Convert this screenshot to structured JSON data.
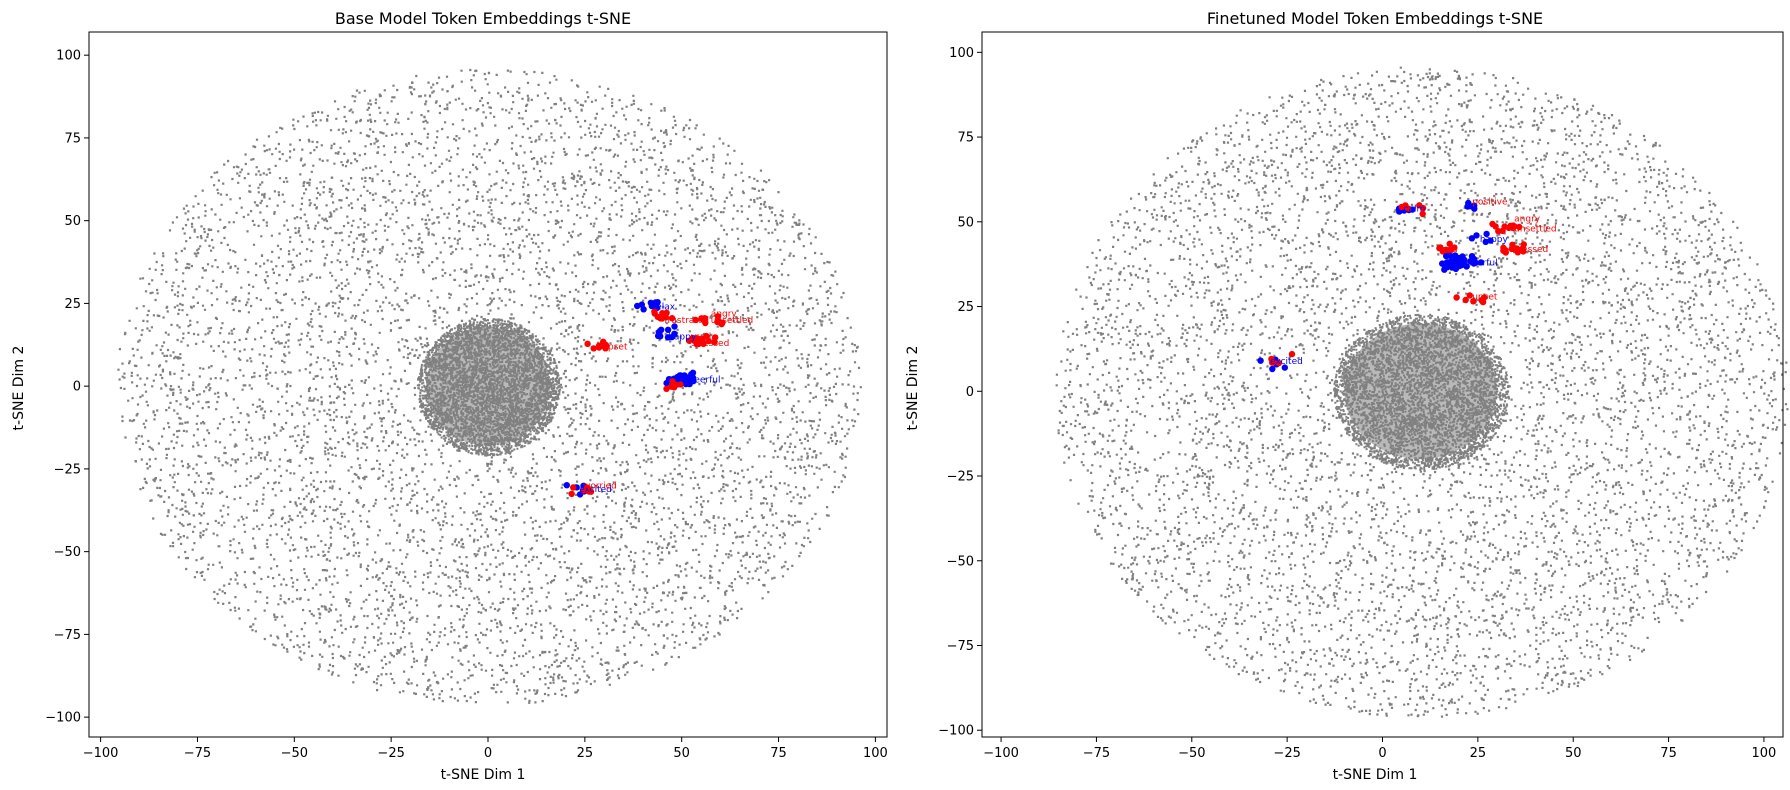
{
  "chart_data": [
    {
      "type": "scatter",
      "title": "Base Model Token Embeddings t-SNE",
      "xlabel": "t-SNE Dim 1",
      "ylabel": "t-SNE Dim 2",
      "xlim": [
        -103,
        103
      ],
      "ylim": [
        -106,
        107
      ],
      "xticks": [
        -100,
        -75,
        -50,
        -25,
        0,
        25,
        50,
        75,
        100
      ],
      "yticks": [
        -100,
        -75,
        -50,
        -25,
        0,
        25,
        50,
        75,
        100
      ],
      "grid": false,
      "background_cloud": {
        "color": "#808080",
        "center": [
          0,
          0
        ],
        "radius": 96,
        "dense_core_center": [
          0,
          0
        ],
        "dense_core_radius_x": 16,
        "dense_core_radius_y": 18
      },
      "highlight_clusters": [
        {
          "color": "#0000ff",
          "x": 42,
          "y": 24,
          "n": 8
        },
        {
          "color": "#ff0000",
          "x": 45,
          "y": 21,
          "n": 10
        },
        {
          "color": "#ff0000",
          "x": 57,
          "y": 20,
          "n": 12
        },
        {
          "color": "#0000ff",
          "x": 47,
          "y": 16,
          "n": 10
        },
        {
          "color": "#ff0000",
          "x": 55,
          "y": 14,
          "n": 14
        },
        {
          "color": "#ff0000",
          "x": 30,
          "y": 12,
          "n": 10
        },
        {
          "color": "#0000ff",
          "x": 50,
          "y": 2,
          "n": 40
        },
        {
          "color": "#ff0000",
          "x": 49,
          "y": 0,
          "n": 6
        },
        {
          "color": "#0000ff",
          "x": 24,
          "y": -31,
          "n": 6
        },
        {
          "color": "#ff0000",
          "x": 25,
          "y": -31,
          "n": 6
        }
      ],
      "annotations": [
        {
          "text": "relax",
          "x": 42,
          "y": 24,
          "color": "#0000ff"
        },
        {
          "text": "frustrated",
          "x": 45,
          "y": 20,
          "color": "#ff0000"
        },
        {
          "text": "angry",
          "x": 57,
          "y": 22,
          "color": "#ff0000"
        },
        {
          "text": "unsettled",
          "x": 57,
          "y": 20,
          "color": "#ff0000"
        },
        {
          "text": "happy",
          "x": 46,
          "y": 15,
          "color": "#0000ff"
        },
        {
          "text": "sad",
          "x": 53,
          "y": 15,
          "color": "#ff0000"
        },
        {
          "text": "stressed",
          "x": 52,
          "y": 13,
          "color": "#ff0000"
        },
        {
          "text": "cheerful",
          "x": 50,
          "y": 2,
          "color": "#0000ff"
        },
        {
          "text": "upset",
          "x": 29,
          "y": 12,
          "color": "#ff0000"
        },
        {
          "text": "excited",
          "x": 23,
          "y": -31,
          "color": "#0000ff"
        },
        {
          "text": "worried",
          "x": 24,
          "y": -30,
          "color": "#ff0000"
        }
      ]
    },
    {
      "type": "scatter",
      "title": "Finetuned Model Token Embeddings t-SNE",
      "xlabel": "t-SNE Dim 1",
      "ylabel": "t-SNE Dim 2",
      "xlim": [
        -105,
        105
      ],
      "ylim": [
        -102,
        106
      ],
      "xticks": [
        -100,
        -75,
        -50,
        -25,
        0,
        25,
        50,
        75,
        100
      ],
      "yticks": [
        -100,
        -75,
        -50,
        -25,
        0,
        25,
        50,
        75,
        100
      ],
      "grid": false,
      "background_cloud": {
        "color": "#808080",
        "center": [
          10,
          0
        ],
        "radius": 96,
        "dense_core_center": [
          10,
          0
        ],
        "dense_core_radius_x": 20,
        "dense_core_radius_y": 20
      },
      "highlight_clusters": [
        {
          "color": "#0000ff",
          "x": 5,
          "y": 53,
          "n": 6
        },
        {
          "color": "#ff0000",
          "x": 7,
          "y": 54,
          "n": 6
        },
        {
          "color": "#0000ff",
          "x": 23,
          "y": 55,
          "n": 5
        },
        {
          "color": "#ff0000",
          "x": 34,
          "y": 48,
          "n": 12
        },
        {
          "color": "#0000ff",
          "x": 25,
          "y": 45,
          "n": 5
        },
        {
          "color": "#ff0000",
          "x": 16,
          "y": 42,
          "n": 8
        },
        {
          "color": "#ff0000",
          "x": 34,
          "y": 42,
          "n": 14
        },
        {
          "color": "#0000ff",
          "x": 20,
          "y": 38,
          "n": 45
        },
        {
          "color": "#ff0000",
          "x": 23,
          "y": 27,
          "n": 8
        },
        {
          "color": "#0000ff",
          "x": -29,
          "y": 8,
          "n": 5
        },
        {
          "color": "#ff0000",
          "x": -28,
          "y": 9,
          "n": 5
        }
      ],
      "annotations": [
        {
          "text": "calm",
          "x": 5,
          "y": 54,
          "color": "#0000ff"
        },
        {
          "text": "positive",
          "x": 23,
          "y": 56,
          "color": "#ff0000"
        },
        {
          "text": "angry",
          "x": 34,
          "y": 51,
          "color": "#ff0000"
        },
        {
          "text": "unsettled",
          "x": 34,
          "y": 48,
          "color": "#ff0000"
        },
        {
          "text": "happy",
          "x": 25,
          "y": 45,
          "color": "#0000ff"
        },
        {
          "text": "sad",
          "x": 15,
          "y": 42,
          "color": "#ff0000"
        },
        {
          "text": "stressed",
          "x": 33,
          "y": 42,
          "color": "#ff0000"
        },
        {
          "text": "cheerful",
          "x": 20,
          "y": 38,
          "color": "#0000ff"
        },
        {
          "text": "upset",
          "x": 23,
          "y": 28,
          "color": "#ff0000"
        },
        {
          "text": "excited",
          "x": -30,
          "y": 9,
          "color": "#0000ff"
        }
      ]
    }
  ]
}
